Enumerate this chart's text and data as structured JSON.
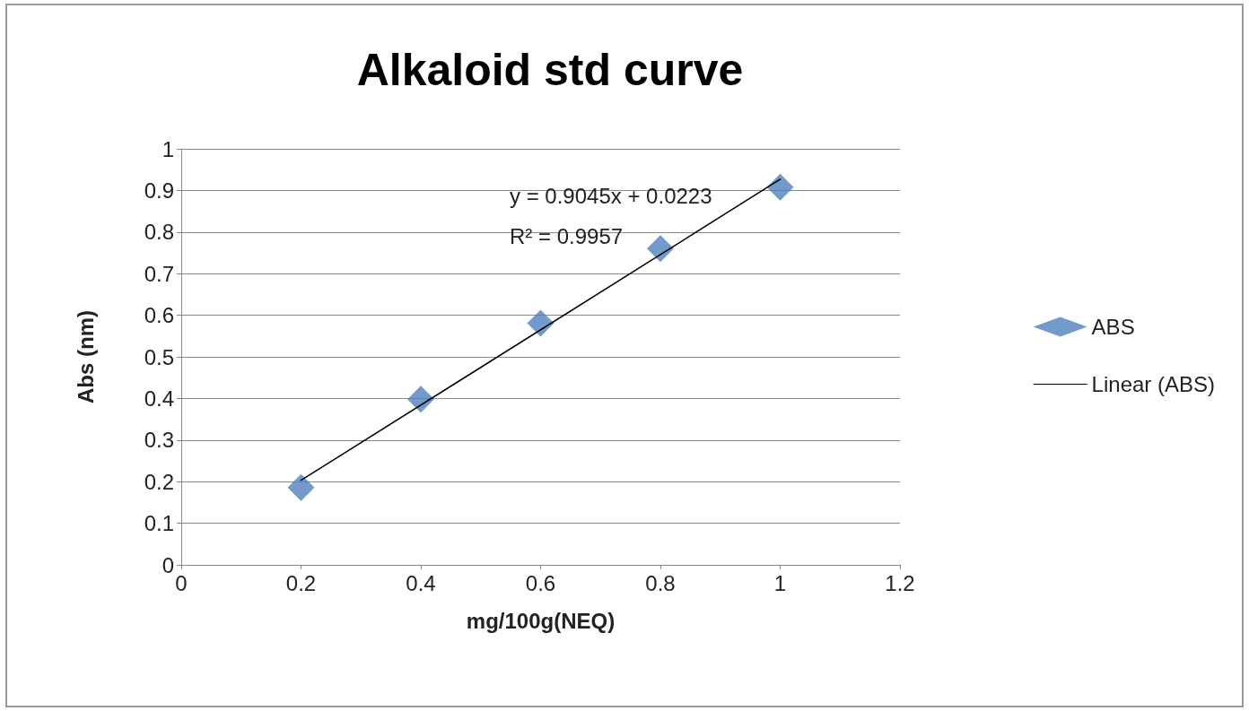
{
  "chart_data": {
    "type": "scatter",
    "title": "Alkaloid std curve",
    "xlabel": "mg/100g(NEQ)",
    "ylabel": "Abs (nm)",
    "x": [
      0.2,
      0.4,
      0.6,
      0.8,
      1.0
    ],
    "series": [
      {
        "name": "ABS",
        "color": "#4f81bd",
        "values": [
          0.186,
          0.398,
          0.581,
          0.76,
          0.908
        ]
      },
      {
        "name": "Linear (ABS)",
        "type": "line",
        "color": "#000000",
        "marker": "none",
        "x": [
          0.2,
          1.0
        ],
        "values": [
          0.2032,
          0.9268
        ]
      }
    ],
    "annotations": [
      "y = 0.9045x + 0.0223",
      "R² = 0.9957"
    ],
    "xlim": [
      0,
      1.2
    ],
    "xticks": [
      0,
      0.2,
      0.4,
      0.6,
      0.8,
      1,
      1.2
    ],
    "ylim": [
      0,
      1
    ],
    "yticks": [
      0,
      0.1,
      0.2,
      0.3,
      0.4,
      0.5,
      0.6,
      0.7,
      0.8,
      0.9,
      1
    ],
    "grid": "y",
    "legend": "right",
    "marker": "diamond",
    "line_style": "solid"
  }
}
